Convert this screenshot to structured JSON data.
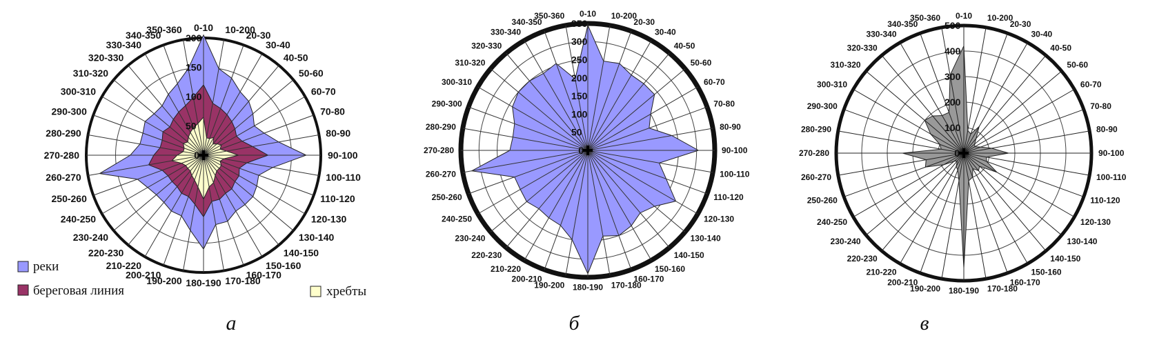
{
  "chart_data": [
    {
      "type": "radar",
      "panel_label": "а",
      "categories": [
        "0-10",
        "10-200",
        "20-30",
        "30-40",
        "40-50",
        "50-60",
        "60-70",
        "70-80",
        "80-90",
        "90-100",
        "100-110",
        "110-120",
        "120-130",
        "130-140",
        "140-150",
        "150-160",
        "160-170",
        "170-180",
        "180-190",
        "190-200",
        "200-210",
        "210-220",
        "220-230",
        "230-240",
        "240-250",
        "250-260",
        "260-270",
        "270-280",
        "280-290",
        "290-300",
        "300-310",
        "310-320",
        "320-330",
        "330-340",
        "340-350",
        "350-360"
      ],
      "radial_ticks": [
        "0",
        "50",
        "100",
        "150",
        "200"
      ],
      "rlim": [
        0,
        200
      ],
      "grid": true,
      "legend_position": "bottom",
      "series": [
        {
          "name": "реки",
          "color": "#9999ff",
          "values": [
            205,
            150,
            140,
            125,
            120,
            110,
            100,
            110,
            130,
            175,
            120,
            100,
            105,
            110,
            110,
            110,
            120,
            120,
            160,
            130,
            110,
            110,
            105,
            105,
            110,
            120,
            180,
            125,
            110,
            110,
            115,
            110,
            110,
            120,
            130,
            150
          ]
        },
        {
          "name": "береговая линия",
          "color": "#993366",
          "values": [
            120,
            90,
            85,
            80,
            75,
            70,
            65,
            70,
            85,
            110,
            75,
            65,
            70,
            70,
            75,
            75,
            80,
            80,
            105,
            85,
            75,
            75,
            70,
            70,
            70,
            75,
            95,
            85,
            75,
            75,
            80,
            75,
            80,
            85,
            90,
            100
          ]
        },
        {
          "name": "хребты",
          "color": "#ffffcc",
          "values": [
            65,
            30,
            30,
            35,
            25,
            30,
            35,
            30,
            40,
            60,
            35,
            30,
            35,
            35,
            35,
            40,
            50,
            55,
            75,
            55,
            45,
            40,
            35,
            35,
            35,
            40,
            55,
            45,
            35,
            35,
            40,
            35,
            40,
            45,
            50,
            55
          ]
        }
      ]
    },
    {
      "type": "radar",
      "panel_label": "б",
      "categories": [
        "0-10",
        "10-200",
        "20-30",
        "30-40",
        "40-50",
        "50-60",
        "60-70",
        "70-80",
        "80-90",
        "90-100",
        "100-110",
        "110-120",
        "120-130",
        "130-140",
        "140-150",
        "150-160",
        "160-170",
        "170-180",
        "180-190",
        "190-200",
        "200-210",
        "210-220",
        "220-230",
        "230-240",
        "240-250",
        "250-260",
        "260-270",
        "270-280",
        "280-290",
        "290-300",
        "300-310",
        "310-320",
        "320-330",
        "330-340",
        "340-350",
        "350-360"
      ],
      "radial_ticks": [
        "0",
        "50",
        "100",
        "150",
        "200",
        "250",
        "300",
        "350"
      ],
      "rlim": [
        0,
        350
      ],
      "grid": true,
      "series": [
        {
          "color": "#9999ff",
          "values": [
            345,
            250,
            255,
            240,
            240,
            240,
            200,
            180,
            235,
            305,
            200,
            230,
            280,
            240,
            225,
            240,
            250,
            240,
            340,
            250,
            220,
            215,
            210,
            220,
            215,
            215,
            325,
            215,
            210,
            215,
            240,
            250,
            250,
            245,
            255,
            200
          ]
        }
      ]
    },
    {
      "type": "radar",
      "panel_label": "в",
      "categories": [
        "0-10",
        "10-200",
        "20-30",
        "30-40",
        "40-50",
        "50-60",
        "60-70",
        "70-80",
        "80-90",
        "90-100",
        "100-110",
        "110-120",
        "120-130",
        "130-140",
        "140-150",
        "150-160",
        "160-170",
        "170-180",
        "180-190",
        "190-200",
        "200-210",
        "210-220",
        "220-230",
        "230-240",
        "240-250",
        "250-260",
        "260-270",
        "270-280",
        "280-290",
        "290-300",
        "300-310",
        "310-320",
        "320-330",
        "330-340",
        "340-350",
        "350-360"
      ],
      "radial_ticks": [
        "0",
        "100",
        "200",
        "300",
        "400",
        "500"
      ],
      "rlim": [
        0,
        500
      ],
      "grid": true,
      "series": [
        {
          "color": "#999999",
          "values": [
            420,
            90,
            80,
            120,
            75,
            55,
            50,
            70,
            110,
            175,
            90,
            95,
            150,
            80,
            90,
            70,
            100,
            110,
            450,
            110,
            70,
            60,
            40,
            50,
            90,
            160,
            150,
            240,
            90,
            100,
            150,
            200,
            190,
            170,
            170,
            310
          ]
        }
      ]
    }
  ]
}
